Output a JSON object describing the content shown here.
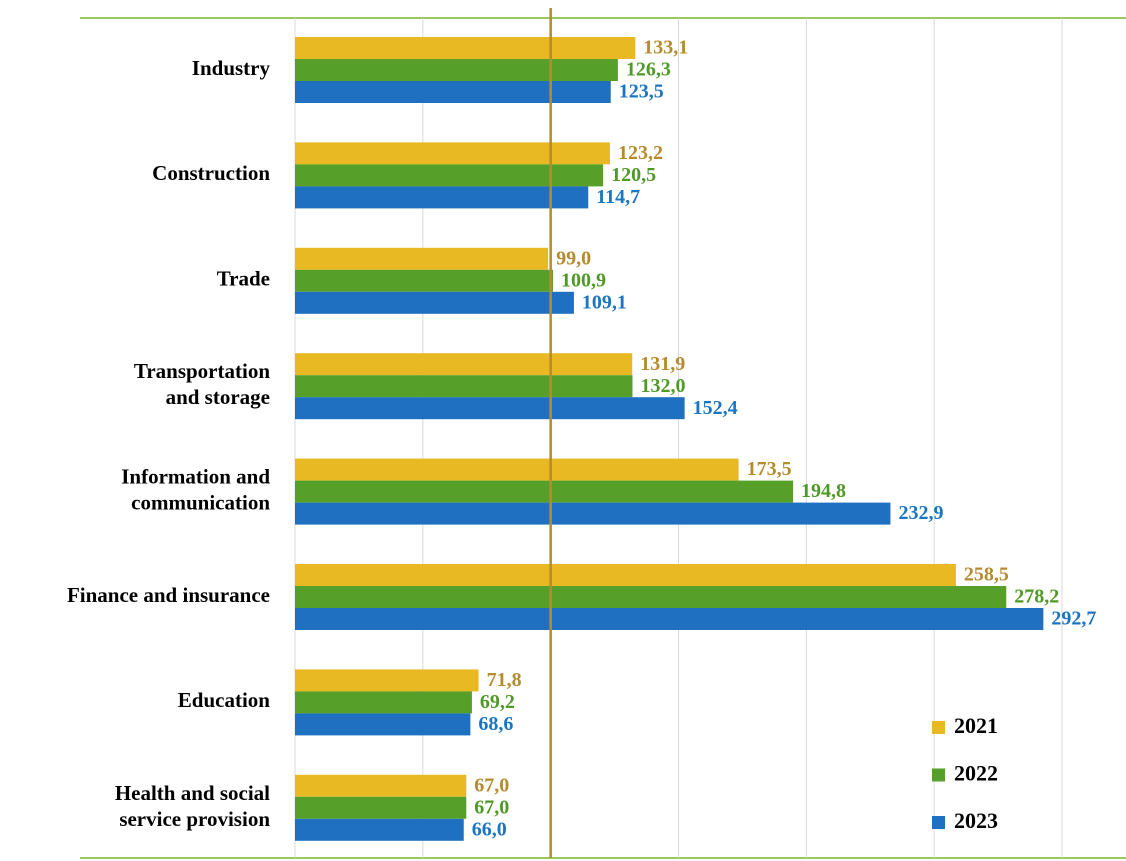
{
  "chart_data": {
    "type": "hbar",
    "categories": [
      "Industry",
      "Construction",
      "Trade",
      "Transportation\nand storage",
      "Information and\ncommunication",
      "Finance and insurance",
      "Education",
      "Health and social\nservice provision"
    ],
    "series": [
      {
        "name": "2021",
        "color": "#e8b923",
        "label_color": "#b58b2e",
        "values": [
          133.1,
          123.2,
          99.0,
          131.9,
          173.5,
          258.5,
          71.8,
          67.0
        ],
        "value_labels": [
          "133,1",
          "123,2",
          "99,0",
          "131,9",
          "173,5",
          "258,5",
          "71,8",
          "67,0"
        ]
      },
      {
        "name": "2022",
        "color": "#56a02a",
        "label_color": "#4f9a27",
        "values": [
          126.3,
          120.5,
          100.9,
          132.0,
          194.8,
          278.2,
          69.2,
          67.0
        ],
        "value_labels": [
          "126,3",
          "120,5",
          "100,9",
          "132,0",
          "194,8",
          "278,2",
          "69,2",
          "67,0"
        ]
      },
      {
        "name": "2023",
        "color": "#1f70c1",
        "label_color": "#1a75c2",
        "values": [
          123.5,
          114.7,
          109.1,
          152.4,
          232.9,
          292.7,
          68.6,
          66.0
        ],
        "value_labels": [
          "123,5",
          "114,7",
          "109,1",
          "152,4",
          "232,9",
          "292,7",
          "68,6",
          "66,0"
        ]
      }
    ],
    "xlim": [
      0,
      300
    ],
    "xticks": [
      0,
      50,
      100,
      150,
      200,
      250,
      300
    ],
    "reference_line": 100,
    "grid": true,
    "legend": "lower right"
  }
}
